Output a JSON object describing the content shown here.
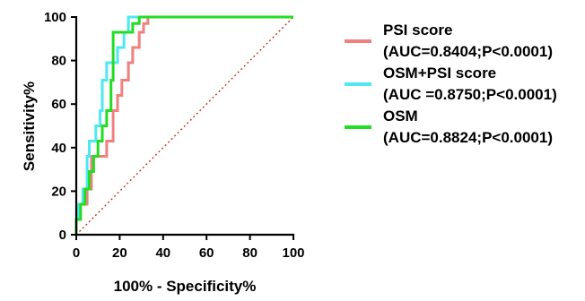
{
  "chart_data": {
    "type": "line",
    "title": "",
    "xlabel": "100% - Specificity%",
    "ylabel": "Sensitivity%",
    "xlim": [
      0,
      100
    ],
    "ylim": [
      0,
      100
    ],
    "xticks": [
      0,
      20,
      40,
      60,
      80,
      100
    ],
    "yticks": [
      0,
      20,
      40,
      60,
      80,
      100
    ],
    "grid": false,
    "legend_position": "right",
    "reference_line": {
      "style": "dotted",
      "color": "#c0392b",
      "from": [
        0,
        0
      ],
      "to": [
        100,
        100
      ]
    },
    "series": [
      {
        "name": "PSI score",
        "auc_label": "(AUC=0.8404;P<0.0001)",
        "color": "#f08080",
        "x": [
          0,
          0,
          2,
          2,
          5,
          5,
          7,
          7,
          14,
          14,
          17,
          17,
          19,
          19,
          21,
          21,
          24,
          24,
          26,
          26,
          29,
          29,
          31,
          31,
          33,
          33,
          100
        ],
        "y": [
          0,
          7,
          7,
          14,
          14,
          21,
          21,
          36,
          36,
          43,
          43,
          57,
          57,
          64,
          64,
          71,
          71,
          79,
          79,
          86,
          86,
          93,
          93,
          97,
          97,
          100,
          100
        ]
      },
      {
        "name": "OSM+PSI score",
        "auc_label": "(AUC =0.8750;P<0.0001)",
        "color": "#4de8f0",
        "x": [
          0,
          0,
          1,
          1,
          3,
          3,
          5,
          5,
          6,
          6,
          9,
          9,
          11,
          11,
          12,
          12,
          14,
          14,
          19,
          19,
          22,
          22,
          24,
          24,
          100
        ],
        "y": [
          0,
          7,
          7,
          14,
          14,
          21,
          21,
          36,
          36,
          43,
          43,
          50,
          50,
          57,
          57,
          71,
          71,
          79,
          79,
          86,
          86,
          93,
          93,
          100,
          100
        ]
      },
      {
        "name": "OSM",
        "auc_label": "(AUC=0.8824;P<0.0001)",
        "color": "#22dd22",
        "x": [
          0,
          0,
          2,
          2,
          4,
          4,
          6,
          6,
          8,
          8,
          10,
          10,
          12,
          12,
          14,
          14,
          16,
          16,
          17,
          17,
          26,
          26,
          29,
          29,
          100
        ],
        "y": [
          0,
          7,
          7,
          14,
          14,
          21,
          21,
          29,
          29,
          36,
          36,
          43,
          43,
          50,
          50,
          57,
          57,
          71,
          71,
          93,
          93,
          97,
          97,
          100,
          100
        ]
      }
    ]
  }
}
